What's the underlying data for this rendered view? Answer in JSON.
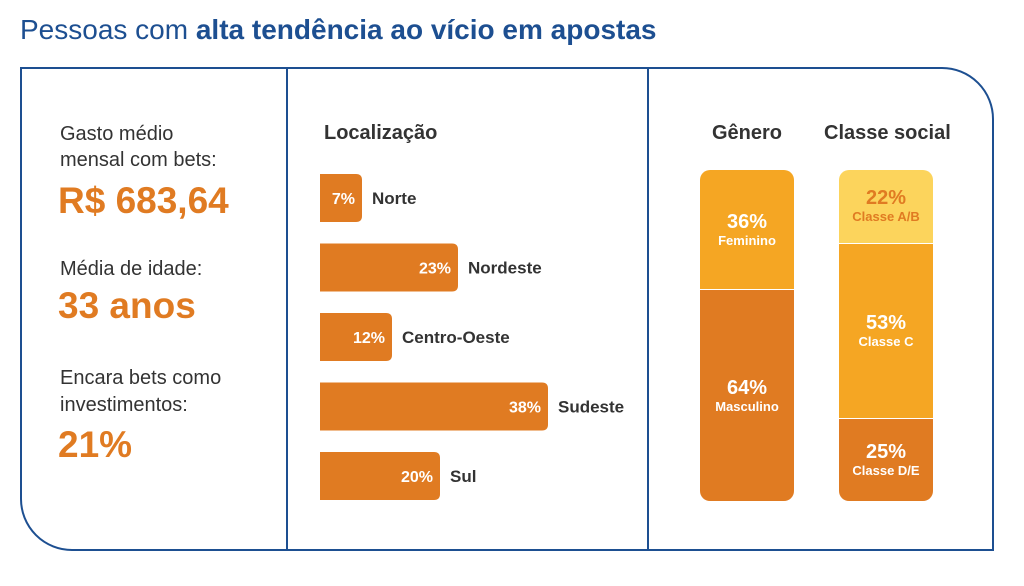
{
  "header": {
    "title_prefix": "Pessoas com ",
    "title_bold": "alta tendência ao vício em apostas"
  },
  "stats": {
    "spend_label_1": "Gasto médio",
    "spend_label_2": "mensal com bets:",
    "spend_value": "R$ 683,64",
    "age_label": "Média de idade:",
    "age_value": "33 anos",
    "invest_label_1": "Encara bets como",
    "invest_label_2": "investimentos:",
    "invest_value": "21%"
  },
  "colors": {
    "title_blue": "#1d4f91",
    "accent_orange": "#e07b22",
    "mid_yellow": "#f5a623",
    "light_yellow": "#fcd45c",
    "text_dark": "#333333"
  },
  "chart_data": [
    {
      "type": "bar",
      "orientation": "horizontal",
      "title": "Localização",
      "categories": [
        "Norte",
        "Nordeste",
        "Centro-Oeste",
        "Sudeste",
        "Sul"
      ],
      "values": [
        7,
        23,
        12,
        38,
        20
      ],
      "value_labels": [
        "7%",
        "23%",
        "12%",
        "38%",
        "20%"
      ],
      "unit": "%",
      "color": "#e07b22"
    },
    {
      "type": "bar",
      "stacked": true,
      "title": "Gênero",
      "series": [
        {
          "name": "Feminino",
          "value": 36,
          "label": "36%",
          "color": "#f5a623",
          "text_color": "#ffffff"
        },
        {
          "name": "Masculino",
          "value": 64,
          "label": "64%",
          "color": "#e07b22",
          "text_color": "#ffffff"
        }
      ]
    },
    {
      "type": "bar",
      "stacked": true,
      "title": "Classe social",
      "series": [
        {
          "name": "Classe A/B",
          "value": 22,
          "label": "22%",
          "color": "#fcd45c",
          "text_color": "#e07b22"
        },
        {
          "name": "Classe C",
          "value": 53,
          "label": "53%",
          "color": "#f5a623",
          "text_color": "#ffffff"
        },
        {
          "name": "Classe D/E",
          "value": 25,
          "label": "25%",
          "color": "#e07b22",
          "text_color": "#ffffff"
        }
      ]
    }
  ]
}
